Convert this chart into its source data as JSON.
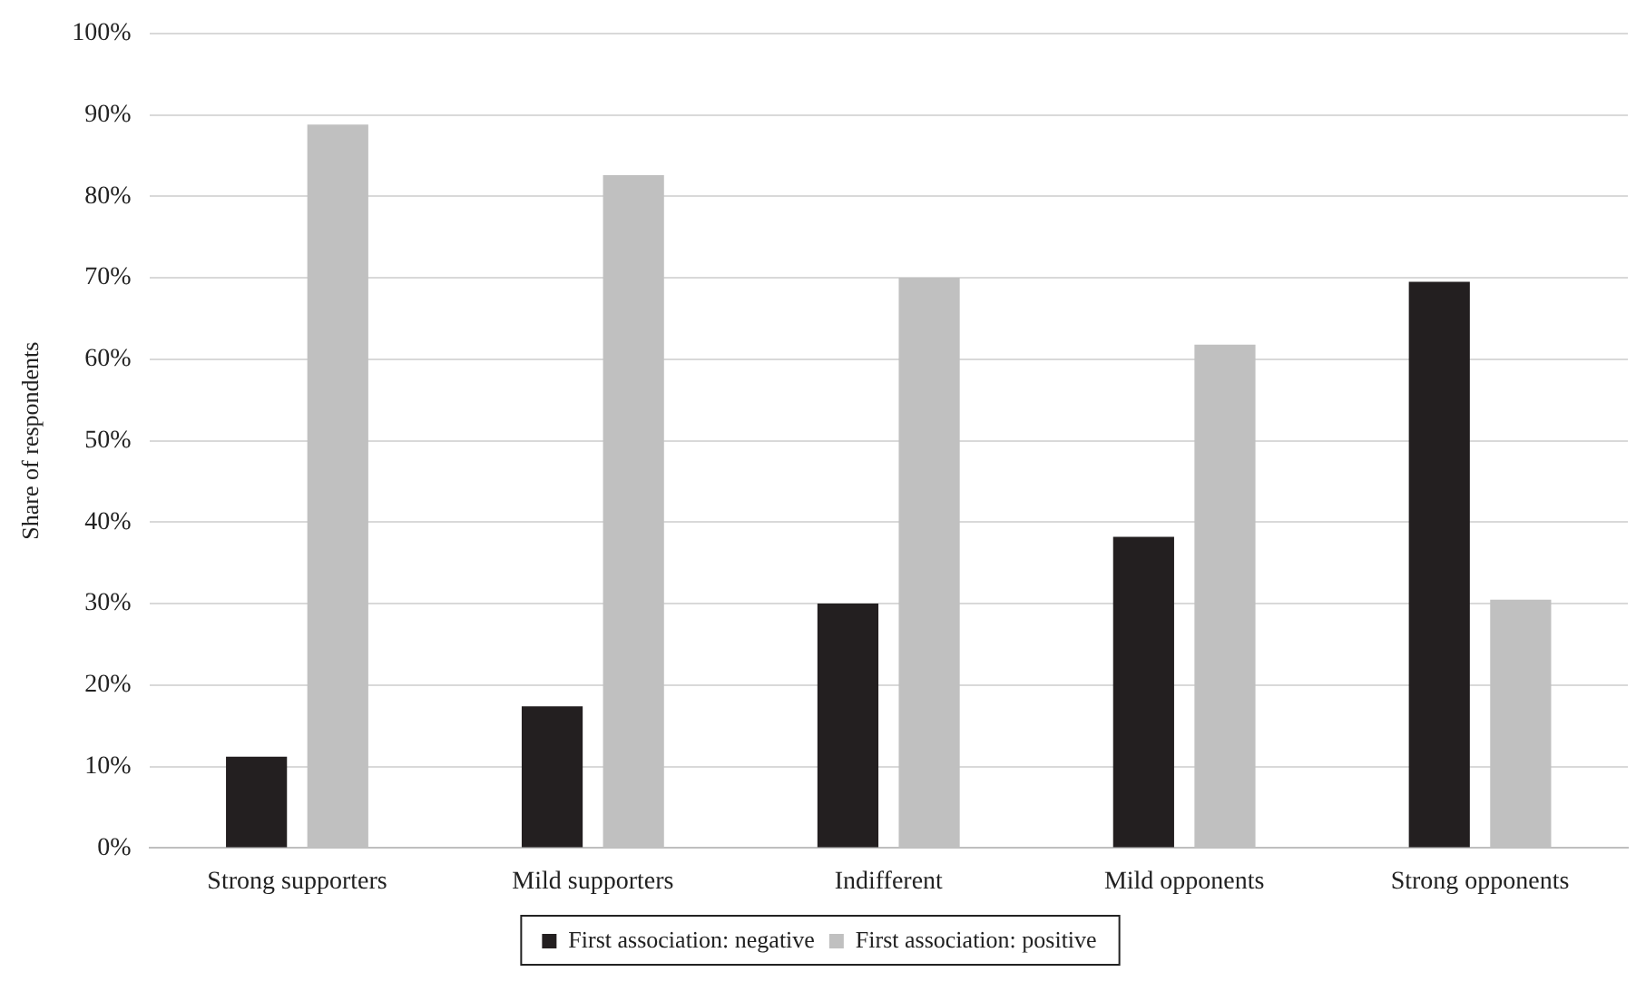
{
  "chart_data": {
    "type": "bar",
    "ylabel": "Share of respondents",
    "categories": [
      "Strong supporters",
      "Mild supporters",
      "Indifferent",
      "Mild opponents",
      "Strong opponents"
    ],
    "series": [
      {
        "name": "First association: negative",
        "color": "#231f20",
        "values": [
          11.2,
          17.4,
          30,
          38.2,
          69.5
        ]
      },
      {
        "name": "First association: positive",
        "color": "#c0c0c0",
        "values": [
          88.8,
          82.6,
          70,
          61.8,
          30.5
        ]
      }
    ],
    "ylim": [
      0,
      100
    ],
    "yticks": [
      {
        "value": 0,
        "label": "0%"
      },
      {
        "value": 10,
        "label": "10%"
      },
      {
        "value": 20,
        "label": "20%"
      },
      {
        "value": 30,
        "label": "30%"
      },
      {
        "value": 40,
        "label": "40%"
      },
      {
        "value": 50,
        "label": "50%"
      },
      {
        "value": 60,
        "label": "60%"
      },
      {
        "value": 70,
        "label": "70%"
      },
      {
        "value": 80,
        "label": "80%"
      },
      {
        "value": 90,
        "label": "90%"
      },
      {
        "value": 100,
        "label": "100%"
      }
    ],
    "grid": "y",
    "legend": "bottom"
  }
}
